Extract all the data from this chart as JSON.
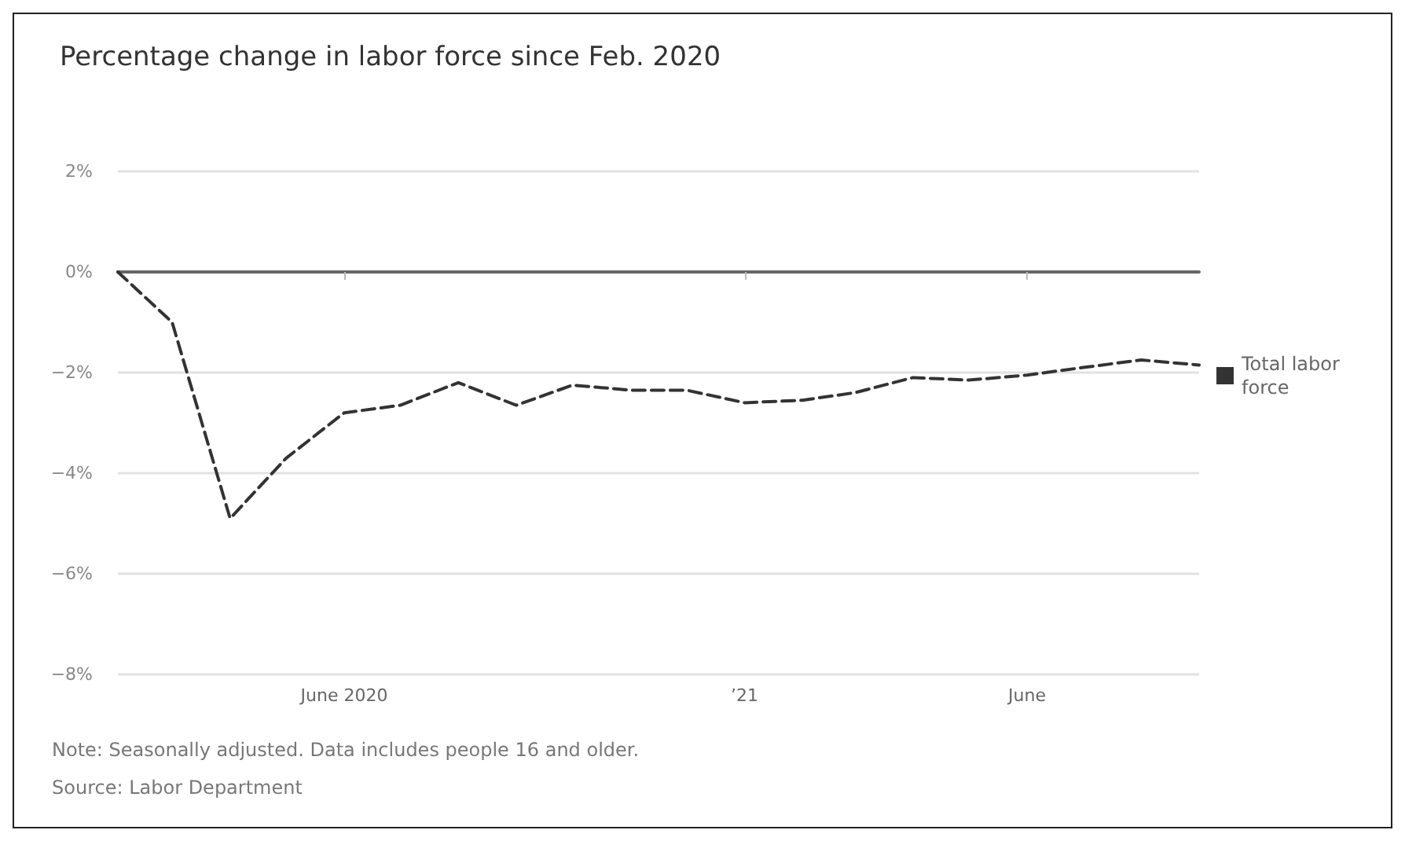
{
  "chart_data": {
    "type": "line",
    "title": "Percentage change in labor force since Feb. 2020",
    "x": [
      "2020-02",
      "2020-03",
      "2020-04",
      "2020-05",
      "2020-06",
      "2020-07",
      "2020-08",
      "2020-09",
      "2020-10",
      "2020-11",
      "2020-12",
      "2021-01",
      "2021-02",
      "2021-03",
      "2021-04",
      "2021-05",
      "2021-06",
      "2021-07",
      "2021-08",
      "2021-09"
    ],
    "series": [
      {
        "name": "Total labor force",
        "color": "#333333",
        "values": [
          0,
          -1.0,
          -4.9,
          -3.7,
          -2.8,
          -2.65,
          -2.2,
          -2.65,
          -2.25,
          -2.35,
          -2.35,
          -2.6,
          -2.55,
          -2.4,
          -2.1,
          -2.15,
          -2.05,
          -1.9,
          -1.75,
          -1.85
        ]
      }
    ],
    "xlim": [
      "2020-02",
      "2021-09"
    ],
    "xticks": [
      {
        "value": "2020-06",
        "label": "June 2020"
      },
      {
        "value": "2021-01",
        "label": "’21"
      },
      {
        "value": "2021-06",
        "label": "June"
      }
    ],
    "ylim": [
      -8,
      2
    ],
    "yticks": [
      {
        "value": 2,
        "label": "2%"
      },
      {
        "value": 0,
        "label": "0%"
      },
      {
        "value": -2,
        "label": "−2%"
      },
      {
        "value": -4,
        "label": "−4%"
      },
      {
        "value": -6,
        "label": "−6%"
      },
      {
        "value": -8,
        "label": "−8%"
      }
    ],
    "grid": "y",
    "legend": "right",
    "line_style": "dashed",
    "marker": "none",
    "annotations": [
      "Note: Seasonally adjusted. Data includes people 16 and older.",
      "Source: Labor Department"
    ]
  }
}
